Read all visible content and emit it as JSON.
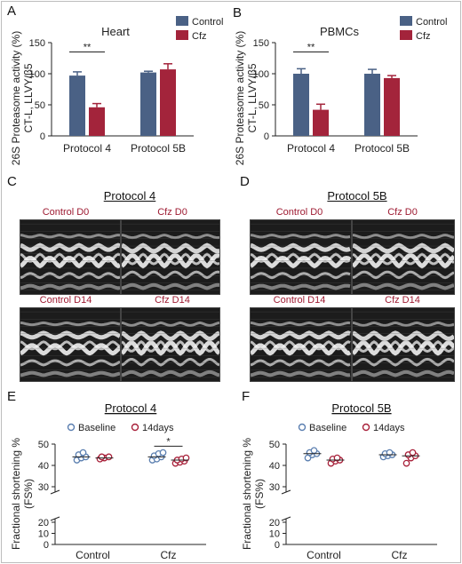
{
  "panel_letters": [
    "A",
    "B",
    "C",
    "D",
    "E",
    "F"
  ],
  "colors": {
    "control": "#4a6185",
    "cfz": "#a3243b",
    "baseline": "#5b7fb0",
    "days14": "#a8213a",
    "label_red": "#9e1b32"
  },
  "chart_data": [
    {
      "id": "A",
      "type": "bar",
      "title": "Heart",
      "ylabel_line1": "26S Proteasome activity (%)",
      "ylabel_line2": "CT-L, LLVY/β5",
      "categories": [
        "Protocol 4",
        "Protocol 5B"
      ],
      "ylim": [
        0,
        150
      ],
      "yticks": [
        "0",
        "50",
        "100",
        "150"
      ],
      "legend": [
        "Control",
        "Cfz"
      ],
      "series": [
        {
          "name": "Control",
          "values": [
            97,
            102
          ],
          "errors": [
            6,
            2
          ]
        },
        {
          "name": "Cfz",
          "values": [
            46,
            107
          ],
          "errors": [
            6,
            9
          ]
        }
      ],
      "significance": [
        {
          "category": "Protocol 4",
          "label": "**"
        }
      ]
    },
    {
      "id": "B",
      "type": "bar",
      "title": "PBMCs",
      "ylabel_line1": "26S Proteasome activity (%)",
      "ylabel_line2": "CT-L, LLVY/β5",
      "categories": [
        "Protocol 4",
        "Protocol 5B"
      ],
      "ylim": [
        0,
        150
      ],
      "yticks": [
        "0",
        "50",
        "100",
        "150"
      ],
      "legend": [
        "Control",
        "Cfz"
      ],
      "series": [
        {
          "name": "Control",
          "values": [
            100,
            100
          ],
          "errors": [
            8,
            7
          ]
        },
        {
          "name": "Cfz",
          "values": [
            42,
            93
          ],
          "errors": [
            9,
            4
          ]
        }
      ],
      "significance": [
        {
          "category": "Protocol 4",
          "label": "**"
        }
      ]
    },
    {
      "id": "E",
      "type": "scatter",
      "title": "Protocol 4",
      "ylabel_line1": "Fractional shortening %",
      "ylabel_line2": "(FS%)",
      "categories": [
        "Control",
        "Cfz"
      ],
      "yticks": [
        "0",
        "10",
        "20",
        "30",
        "40",
        "50"
      ],
      "legend": [
        "Baseline",
        "14days"
      ],
      "series": [
        {
          "name": "Baseline",
          "groups": [
            [
              42.5,
              43.5,
              44,
              45,
              46
            ],
            [
              42.5,
              43,
              44,
              44.5,
              45.5,
              46
            ]
          ],
          "means": [
            44,
            44
          ]
        },
        {
          "name": "14days",
          "groups": [
            [
              43,
              43.5,
              44,
              44
            ],
            [
              41,
              41.5,
              42,
              42.5,
              43,
              43.5
            ]
          ],
          "means": [
            43.5,
            42.5
          ]
        }
      ],
      "significance": [
        {
          "category": "Cfz",
          "label": "*"
        }
      ]
    },
    {
      "id": "F",
      "type": "scatter",
      "title": "Protocol 5B",
      "ylabel_line1": "Fractional shortening %",
      "ylabel_line2": "(FS%)",
      "categories": [
        "Control",
        "Cfz"
      ],
      "yticks": [
        "0",
        "10",
        "20",
        "30",
        "40",
        "50"
      ],
      "legend": [
        "Baseline",
        "14days"
      ],
      "series": [
        {
          "name": "Baseline",
          "groups": [
            [
              43.5,
              45,
              45.5,
              46,
              47
            ],
            [
              44,
              44.5,
              45,
              45.5,
              46
            ]
          ],
          "means": [
            45.5,
            45
          ]
        },
        {
          "name": "14days",
          "groups": [
            [
              41,
              42,
              42.5,
              43,
              43.5
            ],
            [
              41,
              43.5,
              44.5,
              45,
              46
            ]
          ],
          "means": [
            42.5,
            44.5
          ]
        }
      ],
      "significance": []
    }
  ],
  "echo_panels": [
    {
      "id": "C",
      "title": "Protocol 4",
      "labels": [
        "Control D0",
        "Cfz D0",
        "Control D14",
        "Cfz D14"
      ]
    },
    {
      "id": "D",
      "title": "Protocol 5B",
      "labels": [
        "Control D0",
        "Cfz D0",
        "Control D14",
        "Cfz D14"
      ]
    }
  ]
}
